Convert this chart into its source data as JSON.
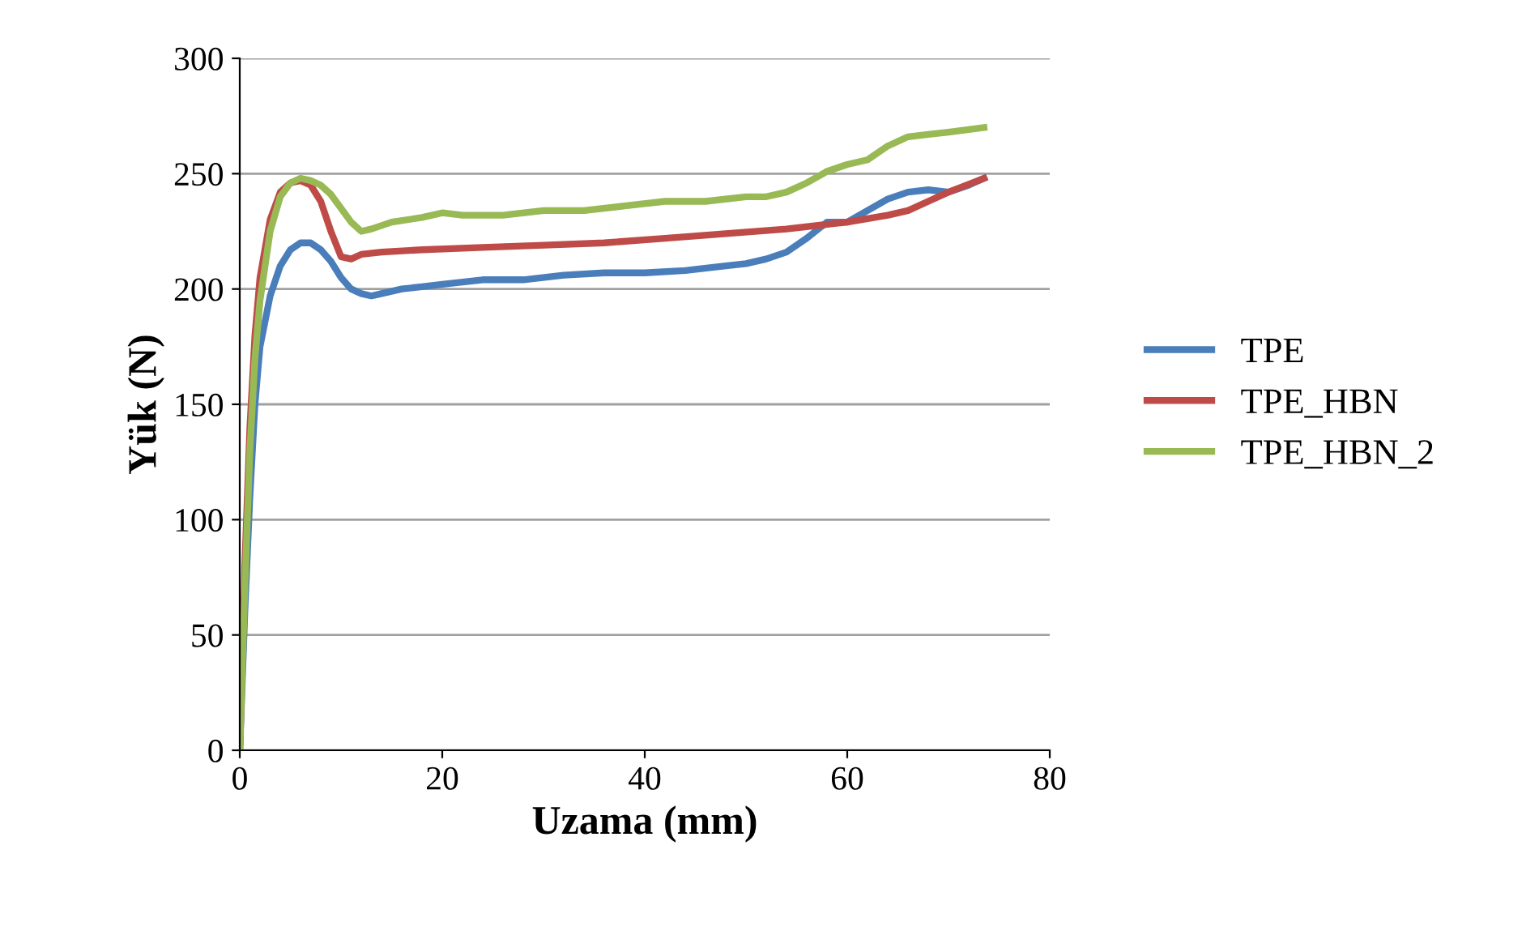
{
  "chart_data": {
    "type": "line",
    "xlabel": "Uzama (mm)",
    "ylabel": "Yük (N)",
    "xlim": [
      0,
      80
    ],
    "xticks": [
      0,
      20,
      40,
      60,
      80
    ],
    "ylim": [
      0,
      300
    ],
    "yticks": [
      0,
      50,
      100,
      150,
      200,
      250,
      300
    ],
    "grid": "y",
    "legend": "right",
    "marker": "none",
    "line_style": "solid",
    "series": [
      {
        "name": "TPE",
        "color": "#4a7ebb",
        "x": [
          0,
          0.5,
          1,
          1.5,
          2,
          3,
          4,
          5,
          6,
          7,
          8,
          9,
          10,
          11,
          12,
          13,
          14,
          16,
          18,
          20,
          24,
          28,
          32,
          36,
          40,
          44,
          48,
          50,
          52,
          54,
          56,
          58,
          60,
          62,
          64,
          66,
          68,
          70,
          72,
          73.5
        ],
        "values": [
          0,
          60,
          110,
          150,
          175,
          197,
          210,
          217,
          220,
          220,
          217,
          212,
          205,
          200,
          198,
          197,
          198,
          200,
          201,
          202,
          204,
          204,
          206,
          207,
          207,
          208,
          210,
          211,
          213,
          216,
          222,
          229,
          229,
          234,
          239,
          242,
          243,
          242,
          245,
          248
        ]
      },
      {
        "name": "TPE_HBN",
        "color": "#be4b48",
        "x": [
          0,
          0.5,
          1,
          1.5,
          2,
          3,
          4,
          5,
          6,
          7,
          8,
          9,
          10,
          11,
          12,
          14,
          18,
          24,
          30,
          36,
          42,
          48,
          54,
          58,
          60,
          64,
          66,
          68,
          70,
          73.5
        ],
        "values": [
          0,
          80,
          140,
          180,
          205,
          230,
          242,
          246,
          247,
          245,
          238,
          225,
          214,
          213,
          215,
          216,
          217,
          218,
          219,
          220,
          222,
          224,
          226,
          228,
          229,
          232,
          234,
          238,
          242,
          248
        ]
      },
      {
        "name": "TPE_HBN_2",
        "color": "#98b954",
        "x": [
          0,
          0.5,
          1,
          1.5,
          2,
          3,
          4,
          5,
          6,
          7,
          8,
          9,
          10,
          11,
          12,
          13,
          15,
          18,
          20,
          22,
          26,
          30,
          34,
          38,
          42,
          46,
          50,
          52,
          54,
          56,
          58,
          60,
          62,
          64,
          66,
          68,
          70,
          73.5
        ],
        "values": [
          0,
          70,
          130,
          170,
          195,
          225,
          240,
          246,
          248,
          247,
          245,
          241,
          235,
          229,
          225,
          226,
          229,
          231,
          233,
          232,
          232,
          234,
          234,
          236,
          238,
          238,
          240,
          240,
          242,
          246,
          251,
          254,
          256,
          262,
          266,
          267,
          268,
          270
        ]
      }
    ]
  }
}
